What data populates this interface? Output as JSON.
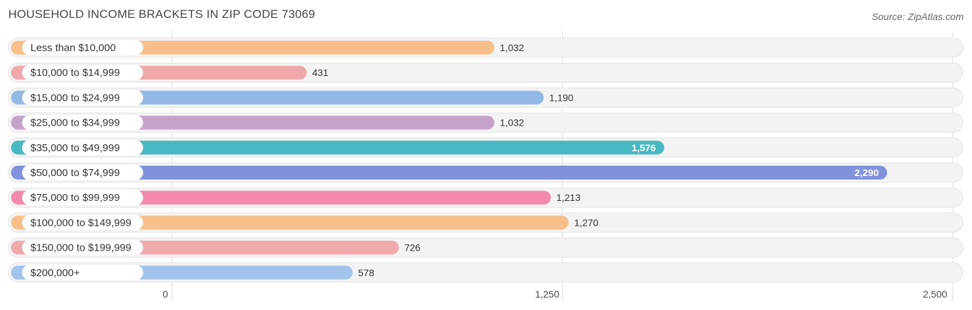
{
  "chart_data": {
    "type": "bar",
    "orientation": "horizontal",
    "title": "HOUSEHOLD INCOME BRACKETS IN ZIP CODE 73069",
    "source": "Source: ZipAtlas.com",
    "categories": [
      "Less than $10,000",
      "$10,000 to $14,999",
      "$15,000 to $24,999",
      "$25,000 to $34,999",
      "$35,000 to $49,999",
      "$50,000 to $74,999",
      "$75,000 to $99,999",
      "$100,000 to $149,999",
      "$150,000 to $199,999",
      "$200,000+"
    ],
    "values": [
      1032,
      431,
      1190,
      1032,
      1576,
      2290,
      1213,
      1270,
      726,
      578
    ],
    "value_labels": [
      "1,032",
      "431",
      "1,190",
      "1,032",
      "1,576",
      "2,290",
      "1,213",
      "1,270",
      "726",
      "578"
    ],
    "colors": [
      "#f9bf8a",
      "#f0a9ab",
      "#92b8e6",
      "#c6a2cb",
      "#48b8c2",
      "#8092dc",
      "#f38aae",
      "#f9bf8a",
      "#f0a9ab",
      "#a2c4ec"
    ],
    "xlim": [
      0,
      2500
    ],
    "ticks": [
      0,
      1250,
      2500
    ],
    "tick_labels": [
      "0",
      "1,250",
      "2,500"
    ],
    "grid": true
  }
}
